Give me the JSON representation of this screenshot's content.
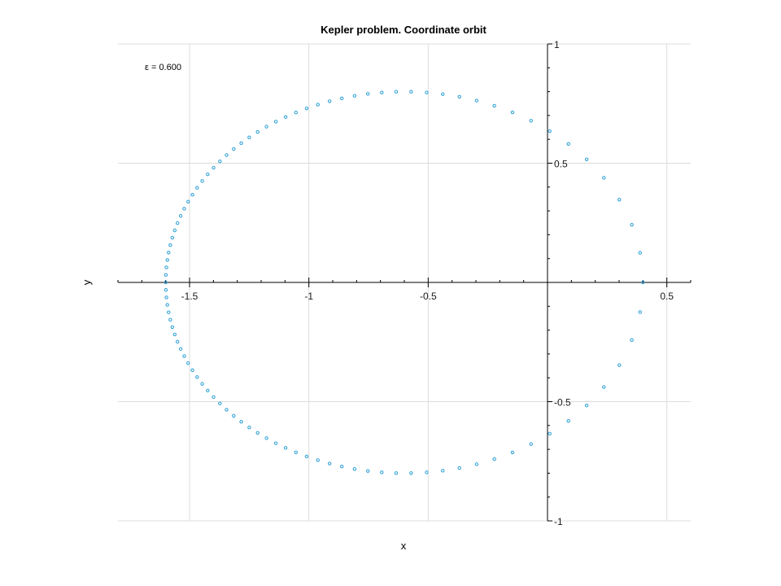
{
  "chart_data": {
    "type": "scatter",
    "title": "Kepler problem. Coordinate orbit",
    "xlabel": "x",
    "ylabel": "y",
    "xlim": [
      -1.8,
      0.6
    ],
    "ylim": [
      -1,
      1
    ],
    "grid": true,
    "axes_through_origin": true,
    "x_ticks": [
      -1.5,
      -1,
      -0.5,
      0.5
    ],
    "x_tick_labels": [
      "-1.5",
      "-1",
      "-0.5",
      "0.5"
    ],
    "y_ticks": [
      1,
      0.5,
      -0.5,
      -1
    ],
    "y_tick_labels": [
      "1",
      "0.5",
      "-0.5",
      "-1"
    ],
    "annotation": "ε = 0.600",
    "marker": "open-circle",
    "series_color": "#2a9fd6",
    "orbit": {
      "semi_major_axis": 1.0,
      "eccentricity": 0.6,
      "center_x": -0.6,
      "point_count": 100
    }
  }
}
